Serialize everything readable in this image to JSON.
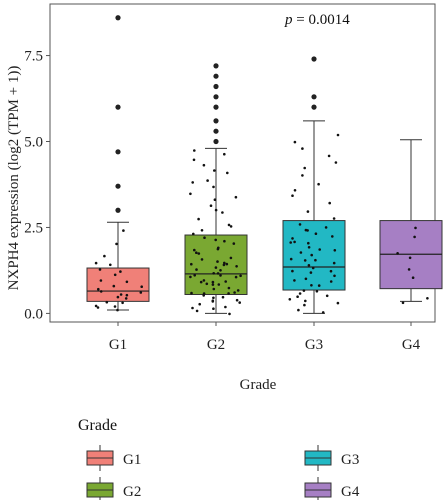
{
  "chart_data": {
    "type": "box",
    "title": "",
    "annotation": "p = 0.0014",
    "annotation_parts": {
      "symbol": "p",
      "rest": " = 0.0014"
    },
    "xlabel": "Grade",
    "ylabel": "NXPH4 expression (log2 (TPM + 1))",
    "ylim": [
      -0.25,
      9.0
    ],
    "yticks": [
      "0.0",
      "2.5",
      "5.0",
      "7.5"
    ],
    "ytick_values": [
      0,
      2.5,
      5,
      7.5
    ],
    "categories": [
      "G1",
      "G2",
      "G3",
      "G4"
    ],
    "colors": [
      "#f08078",
      "#7aa832",
      "#22b8c4",
      "#a67fc4"
    ],
    "series": [
      {
        "name": "G1",
        "min": 0.1,
        "q1": 0.35,
        "median": 0.65,
        "q3": 1.32,
        "max": 2.65,
        "outliers": [
          3.0,
          3.7,
          4.7,
          6.0,
          8.6
        ]
      },
      {
        "name": "G2",
        "min": 0.0,
        "q1": 0.55,
        "median": 1.15,
        "q3": 2.28,
        "max": 4.8,
        "outliers": [
          5.0,
          5.3,
          5.6,
          6.0,
          6.3,
          6.6,
          6.9,
          7.2
        ]
      },
      {
        "name": "G3",
        "min": 0.0,
        "q1": 0.68,
        "median": 1.35,
        "q3": 2.7,
        "max": 5.6,
        "outliers": [
          6.0,
          6.3,
          7.4
        ]
      },
      {
        "name": "G4",
        "min": 0.35,
        "q1": 0.72,
        "median": 1.72,
        "q3": 2.7,
        "max": 5.05,
        "outliers": []
      }
    ],
    "jitter_points": [
      {
        "group": "G1",
        "values": [
          0.1,
          0.15,
          0.2,
          0.25,
          0.3,
          0.35,
          0.4,
          0.45,
          0.5,
          0.55,
          0.6,
          0.65,
          0.7,
          0.75,
          0.8,
          0.9,
          1.0,
          1.1,
          1.2,
          1.3,
          1.4,
          1.5,
          1.7,
          2.0,
          2.4
        ]
      },
      {
        "group": "G2",
        "values": [
          0.0,
          0.05,
          0.1,
          0.15,
          0.2,
          0.3,
          0.35,
          0.4,
          0.45,
          0.5,
          0.55,
          0.6,
          0.65,
          0.7,
          0.75,
          0.8,
          0.85,
          0.9,
          0.95,
          1.0,
          1.05,
          1.1,
          1.15,
          1.2,
          1.25,
          1.3,
          1.35,
          1.4,
          1.45,
          1.5,
          1.6,
          1.7,
          1.8,
          1.9,
          2.0,
          2.1,
          2.2,
          2.3,
          2.4,
          2.5,
          2.7,
          2.9,
          3.1,
          3.3,
          3.5,
          3.7,
          3.9,
          4.1,
          4.3,
          4.5,
          4.7,
          0.25,
          0.6,
          0.9,
          1.2,
          1.5,
          1.8,
          2.1,
          0.4,
          0.75,
          1.05,
          1.35,
          1.65,
          1.95,
          0.5,
          0.8,
          1.1,
          1.4,
          2.6,
          3.0,
          3.4,
          3.8,
          4.2,
          4.6
        ]
      },
      {
        "group": "G3",
        "values": [
          0.0,
          0.1,
          0.2,
          0.3,
          0.4,
          0.5,
          0.6,
          0.7,
          0.8,
          0.9,
          1.0,
          1.1,
          1.2,
          1.3,
          1.4,
          1.5,
          1.6,
          1.7,
          1.8,
          1.9,
          2.0,
          2.1,
          2.2,
          2.3,
          2.4,
          2.5,
          2.6,
          2.8,
          3.0,
          3.2,
          3.4,
          3.6,
          3.8,
          4.0,
          4.2,
          4.4,
          4.6,
          4.8,
          5.0,
          5.2,
          0.35,
          0.65,
          0.95,
          1.25,
          1.55,
          1.85,
          2.15,
          2.45,
          0.55,
          0.85,
          1.15,
          1.45,
          1.75,
          2.05
        ]
      },
      {
        "group": "G4",
        "values": [
          0.35,
          0.45,
          1.0,
          1.25,
          1.6,
          1.75,
          2.2,
          2.5
        ]
      }
    ],
    "legend": {
      "title": "Grade",
      "placement": "bottom",
      "items": [
        "G1",
        "G2",
        "G3",
        "G4"
      ]
    },
    "grid": false
  }
}
